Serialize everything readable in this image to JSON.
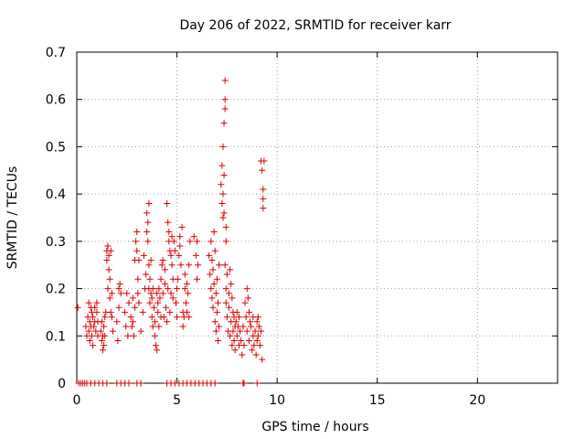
{
  "chart_data": {
    "type": "scatter",
    "title": "Day 206 of 2022, SRMTID for receiver karr",
    "xlabel": "GPS time / hours",
    "ylabel": "SRMTID / TECUs",
    "xlim": [
      0,
      24
    ],
    "ylim": [
      0,
      0.7
    ],
    "xticks": [
      0,
      5,
      10,
      15,
      20
    ],
    "yticks": [
      0,
      0.1,
      0.2,
      0.3,
      0.4,
      0.5,
      0.6,
      0.7
    ],
    "xtick_labels": [
      "0",
      "5",
      "10",
      "15",
      "20"
    ],
    "ytick_labels": [
      "0",
      "0.1",
      "0.2",
      "0.3",
      "0.4",
      "0.5",
      "0.6",
      "0.7"
    ],
    "grid": true,
    "marker": "+",
    "color": "#dd0000",
    "series": [
      {
        "name": "SRMTID",
        "points": [
          [
            0.05,
            0.16
          ],
          [
            0.1,
            0.0
          ],
          [
            0.2,
            0.0
          ],
          [
            0.3,
            0.0
          ],
          [
            0.4,
            0.0
          ],
          [
            0.5,
            0.0
          ],
          [
            0.45,
            0.12
          ],
          [
            0.5,
            0.1
          ],
          [
            0.55,
            0.14
          ],
          [
            0.6,
            0.17
          ],
          [
            0.6,
            0.11
          ],
          [
            0.65,
            0.13
          ],
          [
            0.65,
            0.09
          ],
          [
            0.7,
            0.16
          ],
          [
            0.7,
            0.12
          ],
          [
            0.75,
            0.15
          ],
          [
            0.75,
            0.1
          ],
          [
            0.8,
            0.14
          ],
          [
            0.8,
            0.08
          ],
          [
            0.85,
            0.12
          ],
          [
            0.9,
            0.16
          ],
          [
            0.9,
            0.13
          ],
          [
            0.95,
            0.11
          ],
          [
            1.0,
            0.15
          ],
          [
            1.0,
            0.17
          ],
          [
            1.05,
            0.13
          ],
          [
            1.05,
            0.1
          ],
          [
            0.7,
            0.0
          ],
          [
            0.9,
            0.0
          ],
          [
            1.1,
            0.0
          ],
          [
            1.2,
            0.11
          ],
          [
            1.25,
            0.09
          ],
          [
            1.25,
            0.13
          ],
          [
            1.3,
            0.07
          ],
          [
            1.3,
            0.1
          ],
          [
            1.35,
            0.12
          ],
          [
            1.35,
            0.08
          ],
          [
            1.4,
            0.1
          ],
          [
            1.4,
            0.14
          ],
          [
            1.45,
            0.15
          ],
          [
            1.3,
            0.0
          ],
          [
            1.5,
            0.0
          ],
          [
            1.5,
            0.26
          ],
          [
            1.5,
            0.28
          ],
          [
            1.55,
            0.29
          ],
          [
            1.55,
            0.2
          ],
          [
            1.6,
            0.24
          ],
          [
            1.6,
            0.27
          ],
          [
            1.65,
            0.18
          ],
          [
            1.65,
            0.22
          ],
          [
            1.7,
            0.15
          ],
          [
            1.7,
            0.28
          ],
          [
            1.75,
            0.19
          ],
          [
            1.75,
            0.14
          ],
          [
            1.8,
            0.11
          ],
          [
            2.0,
            0.13
          ],
          [
            2.05,
            0.09
          ],
          [
            2.1,
            0.16
          ],
          [
            2.1,
            0.2
          ],
          [
            2.15,
            0.21
          ],
          [
            2.2,
            0.19
          ],
          [
            2.4,
            0.15
          ],
          [
            2.45,
            0.12
          ],
          [
            2.5,
            0.19
          ],
          [
            2.55,
            0.1
          ],
          [
            2.6,
            0.17
          ],
          [
            2.0,
            0.0
          ],
          [
            2.2,
            0.0
          ],
          [
            2.4,
            0.0
          ],
          [
            2.6,
            0.0
          ],
          [
            2.7,
            0.14
          ],
          [
            2.75,
            0.12
          ],
          [
            2.8,
            0.13
          ],
          [
            2.8,
            0.18
          ],
          [
            2.85,
            0.1
          ],
          [
            2.9,
            0.26
          ],
          [
            2.9,
            0.16
          ],
          [
            2.95,
            0.3
          ],
          [
            3.0,
            0.32
          ],
          [
            3.0,
            0.28
          ],
          [
            3.05,
            0.22
          ],
          [
            3.05,
            0.19
          ],
          [
            3.1,
            0.17
          ],
          [
            3.1,
            0.26
          ],
          [
            3.0,
            0.0
          ],
          [
            3.2,
            0.0
          ],
          [
            3.2,
            0.11
          ],
          [
            3.3,
            0.15
          ],
          [
            3.35,
            0.27
          ],
          [
            3.4,
            0.2
          ],
          [
            3.45,
            0.23
          ],
          [
            3.5,
            0.36
          ],
          [
            3.5,
            0.32
          ],
          [
            3.55,
            0.34
          ],
          [
            3.55,
            0.3
          ],
          [
            3.6,
            0.38
          ],
          [
            3.6,
            0.25
          ],
          [
            3.6,
            0.2
          ],
          [
            3.65,
            0.22
          ],
          [
            3.65,
            0.17
          ],
          [
            3.7,
            0.26
          ],
          [
            3.7,
            0.19
          ],
          [
            3.75,
            0.14
          ],
          [
            3.75,
            0.18
          ],
          [
            3.8,
            0.2
          ],
          [
            3.8,
            0.12
          ],
          [
            3.85,
            0.16
          ],
          [
            3.9,
            0.1
          ],
          [
            3.9,
            0.13
          ],
          [
            3.95,
            0.08
          ],
          [
            4.0,
            0.07
          ],
          [
            4.0,
            0.19
          ],
          [
            4.05,
            0.17
          ],
          [
            4.05,
            0.15
          ],
          [
            4.1,
            0.12
          ],
          [
            4.1,
            0.2
          ],
          [
            4.15,
            0.18
          ],
          [
            4.2,
            0.14
          ],
          [
            4.2,
            0.22
          ],
          [
            4.25,
            0.25
          ],
          [
            4.3,
            0.19
          ],
          [
            4.3,
            0.26
          ],
          [
            4.35,
            0.14
          ],
          [
            4.4,
            0.21
          ],
          [
            4.4,
            0.24
          ],
          [
            4.45,
            0.16
          ],
          [
            4.5,
            0.13
          ],
          [
            4.5,
            0.38
          ],
          [
            4.55,
            0.34
          ],
          [
            4.55,
            0.2
          ],
          [
            4.6,
            0.32
          ],
          [
            4.6,
            0.3
          ],
          [
            4.65,
            0.28
          ],
          [
            4.65,
            0.15
          ],
          [
            4.7,
            0.27
          ],
          [
            4.7,
            0.19
          ],
          [
            4.75,
            0.31
          ],
          [
            4.75,
            0.25
          ],
          [
            4.8,
            0.22
          ],
          [
            4.8,
            0.18
          ],
          [
            4.85,
            0.3
          ],
          [
            4.9,
            0.28
          ],
          [
            4.5,
            0.0
          ],
          [
            4.7,
            0.0
          ],
          [
            4.9,
            0.0
          ],
          [
            4.95,
            0.17
          ],
          [
            5.0,
            0.14
          ],
          [
            5.0,
            0.2
          ],
          [
            5.05,
            0.22
          ],
          [
            5.1,
            0.27
          ],
          [
            5.15,
            0.29
          ],
          [
            5.15,
            0.31
          ],
          [
            5.2,
            0.25
          ],
          [
            5.25,
            0.33
          ],
          [
            5.3,
            0.12
          ],
          [
            5.3,
            0.15
          ],
          [
            5.35,
            0.14
          ],
          [
            5.4,
            0.2
          ],
          [
            5.4,
            0.23
          ],
          [
            5.45,
            0.17
          ],
          [
            5.5,
            0.15
          ],
          [
            5.5,
            0.21
          ],
          [
            5.55,
            0.19
          ],
          [
            5.6,
            0.14
          ],
          [
            5.6,
            0.25
          ],
          [
            5.65,
            0.3
          ],
          [
            5.1,
            0.0
          ],
          [
            5.3,
            0.0
          ],
          [
            5.5,
            0.0
          ],
          [
            5.7,
            0.0
          ],
          [
            5.9,
            0.0
          ],
          [
            6.1,
            0.0
          ],
          [
            6.3,
            0.0
          ],
          [
            5.85,
            0.31
          ],
          [
            5.95,
            0.27
          ],
          [
            6.0,
            0.3
          ],
          [
            6.0,
            0.22
          ],
          [
            6.05,
            0.25
          ],
          [
            6.5,
            0.0
          ],
          [
            6.7,
            0.0
          ],
          [
            6.9,
            0.0
          ],
          [
            6.6,
            0.27
          ],
          [
            6.65,
            0.23
          ],
          [
            6.7,
            0.2
          ],
          [
            6.7,
            0.3
          ],
          [
            6.75,
            0.18
          ],
          [
            6.75,
            0.26
          ],
          [
            6.8,
            0.24
          ],
          [
            6.8,
            0.16
          ],
          [
            6.85,
            0.21
          ],
          [
            6.85,
            0.32
          ],
          [
            6.9,
            0.13
          ],
          [
            6.9,
            0.28
          ],
          [
            6.95,
            0.11
          ],
          [
            6.95,
            0.19
          ],
          [
            7.0,
            0.15
          ],
          [
            7.0,
            0.22
          ],
          [
            7.05,
            0.17
          ],
          [
            7.05,
            0.09
          ],
          [
            7.1,
            0.12
          ],
          [
            7.1,
            0.25
          ],
          [
            7.2,
            0.42
          ],
          [
            7.25,
            0.38
          ],
          [
            7.25,
            0.46
          ],
          [
            7.3,
            0.4
          ],
          [
            7.3,
            0.35
          ],
          [
            7.3,
            0.5
          ],
          [
            7.35,
            0.44
          ],
          [
            7.35,
            0.36
          ],
          [
            7.35,
            0.55
          ],
          [
            7.4,
            0.6
          ],
          [
            7.4,
            0.64
          ],
          [
            7.4,
            0.58
          ],
          [
            7.45,
            0.33
          ],
          [
            7.45,
            0.3
          ],
          [
            7.4,
            0.25
          ],
          [
            7.45,
            0.2
          ],
          [
            7.45,
            0.17
          ],
          [
            7.5,
            0.23
          ],
          [
            7.5,
            0.14
          ],
          [
            7.55,
            0.11
          ],
          [
            7.6,
            0.19
          ],
          [
            7.6,
            0.16
          ],
          [
            7.65,
            0.1
          ],
          [
            7.65,
            0.24
          ],
          [
            7.7,
            0.21
          ],
          [
            7.7,
            0.13
          ],
          [
            7.75,
            0.08
          ],
          [
            7.75,
            0.18
          ],
          [
            7.8,
            0.15
          ],
          [
            7.8,
            0.11
          ],
          [
            7.85,
            0.14
          ],
          [
            7.85,
            0.09
          ],
          [
            7.9,
            0.12
          ],
          [
            7.9,
            0.07
          ],
          [
            7.95,
            0.13
          ],
          [
            8.0,
            0.1
          ],
          [
            8.0,
            0.15
          ],
          [
            8.05,
            0.12
          ],
          [
            8.1,
            0.08
          ],
          [
            8.1,
            0.14
          ],
          [
            8.15,
            0.11
          ],
          [
            8.2,
            0.09
          ],
          [
            8.25,
            0.06
          ],
          [
            8.3,
            0.12
          ],
          [
            8.35,
            0.08
          ],
          [
            8.3,
            0.0
          ],
          [
            8.35,
            0.0
          ],
          [
            8.4,
            0.17
          ],
          [
            8.45,
            0.14
          ],
          [
            8.5,
            0.2
          ],
          [
            8.5,
            0.11
          ],
          [
            8.55,
            0.18
          ],
          [
            8.6,
            0.15
          ],
          [
            8.6,
            0.09
          ],
          [
            8.65,
            0.13
          ],
          [
            8.7,
            0.12
          ],
          [
            8.75,
            0.07
          ],
          [
            8.8,
            0.1
          ],
          [
            8.8,
            0.14
          ],
          [
            8.85,
            0.08
          ],
          [
            8.9,
            0.11
          ],
          [
            8.95,
            0.06
          ],
          [
            9.0,
            0.13
          ],
          [
            9.0,
            0.09
          ],
          [
            9.05,
            0.1
          ],
          [
            9.05,
            0.14
          ],
          [
            9.1,
            0.12
          ],
          [
            9.15,
            0.08
          ],
          [
            9.2,
            0.11
          ],
          [
            9.25,
            0.05
          ],
          [
            9.2,
            0.47
          ],
          [
            9.25,
            0.45
          ],
          [
            9.3,
            0.41
          ],
          [
            9.3,
            0.39
          ],
          [
            9.3,
            0.37
          ],
          [
            9.35,
            0.47
          ],
          [
            9.0,
            0.0
          ]
        ]
      }
    ]
  }
}
